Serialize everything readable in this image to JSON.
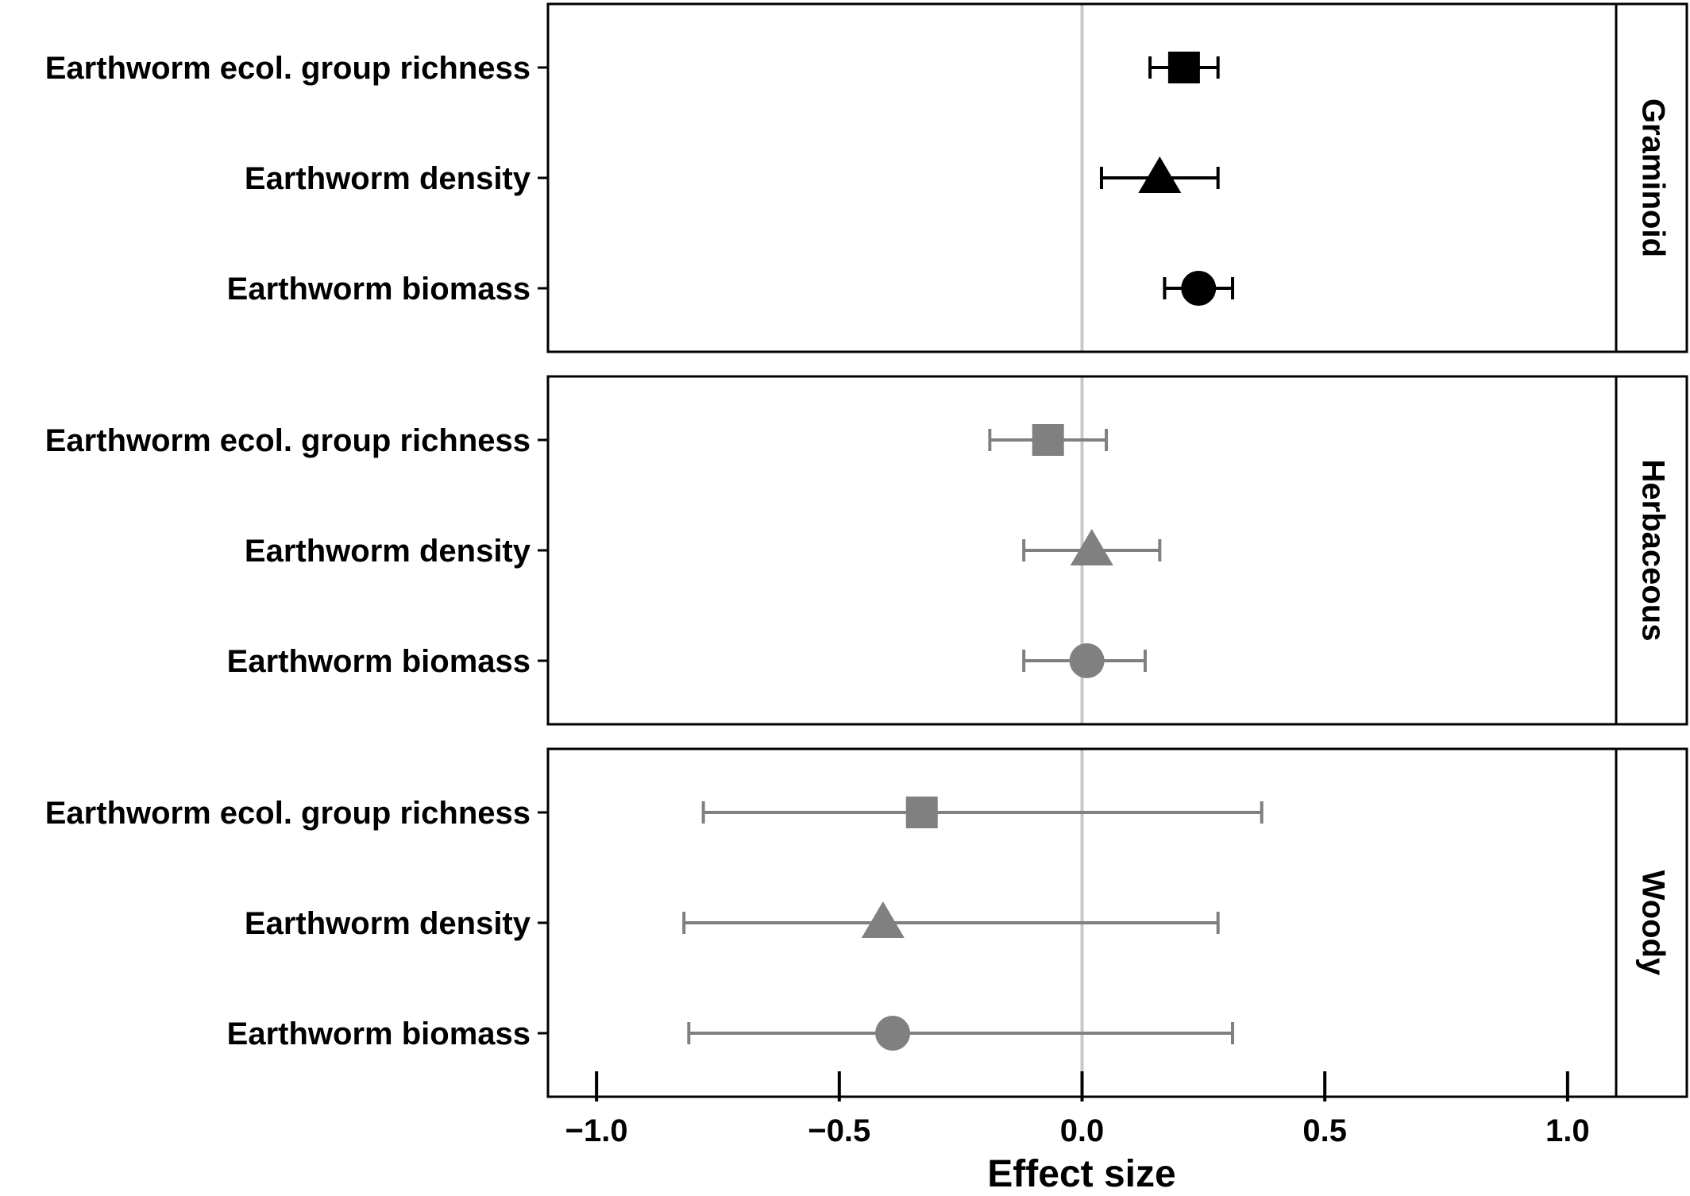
{
  "chart_data": {
    "type": "forest",
    "xlabel": "Effect size",
    "xlim": [
      -1.1,
      1.1
    ],
    "xticks": [
      -1.0,
      -0.5,
      0.0,
      0.5,
      1.0
    ],
    "xtick_labels": [
      "−1.0",
      "−0.5",
      "0.0",
      "0.5",
      "1.0"
    ],
    "reference_line": 0.0,
    "reference_color": "#c8c8c8",
    "grid": false,
    "panels": [
      {
        "strip": "Graminoid",
        "color": "#000000",
        "rows": [
          {
            "label": "Earthworm ecol. group richness",
            "shape": "square",
            "estimate": 0.21,
            "lower": 0.14,
            "upper": 0.28
          },
          {
            "label": "Earthworm density",
            "shape": "triangle",
            "estimate": 0.16,
            "lower": 0.04,
            "upper": 0.28
          },
          {
            "label": "Earthworm biomass",
            "shape": "circle",
            "estimate": 0.24,
            "lower": 0.17,
            "upper": 0.31
          }
        ]
      },
      {
        "strip": "Herbaceous",
        "color": "#808080",
        "rows": [
          {
            "label": "Earthworm ecol. group richness",
            "shape": "square",
            "estimate": -0.07,
            "lower": -0.19,
            "upper": 0.05
          },
          {
            "label": "Earthworm density",
            "shape": "triangle",
            "estimate": 0.02,
            "lower": -0.12,
            "upper": 0.16
          },
          {
            "label": "Earthworm biomass",
            "shape": "circle",
            "estimate": 0.01,
            "lower": -0.12,
            "upper": 0.13
          }
        ]
      },
      {
        "strip": "Woody",
        "color": "#808080",
        "rows": [
          {
            "label": "Earthworm ecol. group richness",
            "shape": "square",
            "estimate": -0.33,
            "lower": -0.78,
            "upper": 0.37
          },
          {
            "label": "Earthworm density",
            "shape": "triangle",
            "estimate": -0.41,
            "lower": -0.82,
            "upper": 0.28
          },
          {
            "label": "Earthworm biomass",
            "shape": "circle",
            "estimate": -0.39,
            "lower": -0.81,
            "upper": 0.31
          }
        ]
      }
    ]
  }
}
